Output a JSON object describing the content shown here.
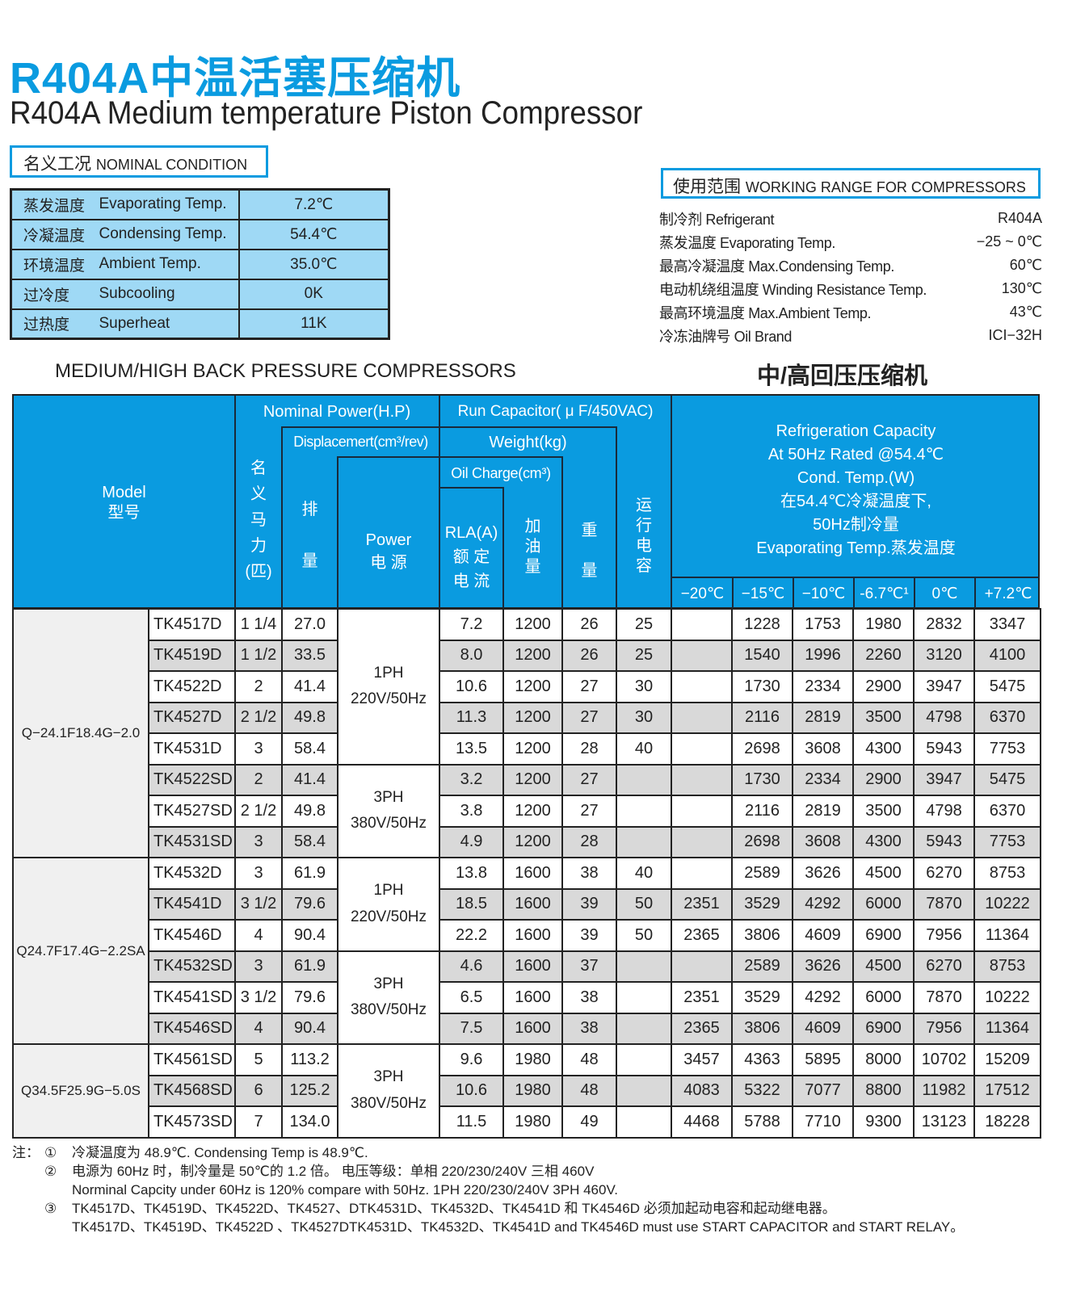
{
  "title_cn": "R404A中温活塞压缩机",
  "title_en": "R404A Medium temperature Piston Compressor",
  "nominal": {
    "header_cn": "名义工况",
    "header_en": "NOMINAL CONDITION",
    "rows": [
      {
        "cn": "蒸发温度",
        "en": "Evaporating Temp.",
        "value": "7.2℃"
      },
      {
        "cn": "冷凝温度",
        "en": "Condensing Temp.",
        "value": "54.4℃"
      },
      {
        "cn": "环境温度",
        "en": "Ambient Temp.",
        "value": "35.0℃"
      },
      {
        "cn": "过冷度",
        "en": "Subcooling",
        "value": "0K"
      },
      {
        "cn": "过热度",
        "en": "Superheat",
        "value": "11K"
      }
    ]
  },
  "working_range": {
    "header_cn": "使用范围",
    "header_en": "WORKING RANGE FOR COMPRESSORS",
    "rows": [
      {
        "label": "制冷剂 Refrigerant",
        "value": "R404A"
      },
      {
        "label": "蒸发温度 Evaporating Temp.",
        "value": "−25 ~ 0℃"
      },
      {
        "label": "最高冷凝温度 Max.Condensing Temp.",
        "value": "60℃"
      },
      {
        "label": "电动机绕组温度 Winding Resistance Temp.",
        "value": "130℃"
      },
      {
        "label": "最高环境温度 Max.Ambient Temp.",
        "value": "43℃"
      },
      {
        "label": "冷冻油牌号 Oil Brand",
        "value": "ICI−32H"
      }
    ]
  },
  "section_en": "MEDIUM/HIGH BACK PRESSURE COMPRESSORS",
  "section_cn": "中/高回压压缩机",
  "header": {
    "model": "Model\n型号",
    "nominal_power": "Nominal Power(H.P)",
    "hp_cn": "名\n义\n马\n力\n(匹)",
    "run_cap": "Run Capacitor( μ F/450VAC)",
    "displacement": "Displacemert(cm³/rev)",
    "disp_cn": "排\n\n量",
    "weight": "Weight(kg)",
    "oil_charge": "Oil Charge(cm³)",
    "power": "Power\n电 源",
    "rla": "RLA(A)\n额 定\n电 流",
    "oil_cn": "加\n油\n量",
    "weight_cn": "重\n\n量",
    "cap_cn": "运\n行\n电\n容",
    "refrig": "Refrigeration Capacity\nAt 50Hz Rated @54.4℃\nCond. Temp.(W)\n在54.4℃冷凝温度下,\n50Hz制冷量\nEvaporating Temp.蒸发温度",
    "temps": [
      "−20℃",
      "−15℃",
      "−10℃",
      "-6.7℃¹",
      "0℃",
      "+7.2℃"
    ]
  },
  "groups": [
    {
      "name": "Q−24.1F18.4G−2.0",
      "power_blocks": [
        {
          "label": "1PH\n220V/50Hz",
          "rows": 5
        },
        {
          "label": "3PH\n380V/50Hz",
          "rows": 3
        }
      ],
      "rows": [
        [
          "TK4517D",
          "1 1/4",
          "27.0",
          "7.2",
          "1200",
          "26",
          "25",
          "",
          "1228",
          "1753",
          "1980",
          "2832",
          "3347"
        ],
        [
          "TK4519D",
          "1 1/2",
          "33.5",
          "8.0",
          "1200",
          "26",
          "25",
          "",
          "1540",
          "1996",
          "2260",
          "3120",
          "4100"
        ],
        [
          "TK4522D",
          "2",
          "41.4",
          "10.6",
          "1200",
          "27",
          "30",
          "",
          "1730",
          "2334",
          "2900",
          "3947",
          "5475"
        ],
        [
          "TK4527D",
          "2 1/2",
          "49.8",
          "11.3",
          "1200",
          "27",
          "30",
          "",
          "2116",
          "2819",
          "3500",
          "4798",
          "6370"
        ],
        [
          "TK4531D",
          "3",
          "58.4",
          "13.5",
          "1200",
          "28",
          "40",
          "",
          "2698",
          "3608",
          "4300",
          "5943",
          "7753"
        ],
        [
          "TK4522SD",
          "2",
          "41.4",
          "3.2",
          "1200",
          "27",
          "",
          "",
          "1730",
          "2334",
          "2900",
          "3947",
          "5475"
        ],
        [
          "TK4527SD",
          "2 1/2",
          "49.8",
          "3.8",
          "1200",
          "27",
          "",
          "",
          "2116",
          "2819",
          "3500",
          "4798",
          "6370"
        ],
        [
          "TK4531SD",
          "3",
          "58.4",
          "4.9",
          "1200",
          "28",
          "",
          "",
          "2698",
          "3608",
          "4300",
          "5943",
          "7753"
        ]
      ]
    },
    {
      "name": "Q24.7F17.4G−2.2SA",
      "power_blocks": [
        {
          "label": "1PH\n220V/50Hz",
          "rows": 3
        },
        {
          "label": "3PH\n380V/50Hz",
          "rows": 3
        }
      ],
      "rows": [
        [
          "TK4532D",
          "3",
          "61.9",
          "13.8",
          "1600",
          "38",
          "40",
          "",
          "2589",
          "3626",
          "4500",
          "6270",
          "8753"
        ],
        [
          "TK4541D",
          "3 1/2",
          "79.6",
          "18.5",
          "1600",
          "39",
          "50",
          "2351",
          "3529",
          "4292",
          "6000",
          "7870",
          "10222"
        ],
        [
          "TK4546D",
          "4",
          "90.4",
          "22.2",
          "1600",
          "39",
          "50",
          "2365",
          "3806",
          "4609",
          "6900",
          "7956",
          "11364"
        ],
        [
          "TK4532SD",
          "3",
          "61.9",
          "4.6",
          "1600",
          "37",
          "",
          "",
          "2589",
          "3626",
          "4500",
          "6270",
          "8753"
        ],
        [
          "TK4541SD",
          "3 1/2",
          "79.6",
          "6.5",
          "1600",
          "38",
          "",
          "2351",
          "3529",
          "4292",
          "6000",
          "7870",
          "10222"
        ],
        [
          "TK4546SD",
          "4",
          "90.4",
          "7.5",
          "1600",
          "38",
          "",
          "2365",
          "3806",
          "4609",
          "6900",
          "7956",
          "11364"
        ]
      ]
    },
    {
      "name": "Q34.5F25.9G−5.0S",
      "power_blocks": [
        {
          "label": "3PH\n380V/50Hz",
          "rows": 3
        }
      ],
      "rows": [
        [
          "TK4561SD",
          "5",
          "113.2",
          "9.6",
          "1980",
          "48",
          "",
          "3457",
          "4363",
          "5895",
          "8000",
          "10702",
          "15209"
        ],
        [
          "TK4568SD",
          "6",
          "125.2",
          "10.6",
          "1980",
          "48",
          "",
          "4083",
          "5322",
          "7077",
          "8800",
          "11982",
          "17512"
        ],
        [
          "TK4573SD",
          "7",
          "134.0",
          "11.5",
          "1980",
          "49",
          "",
          "4468",
          "5788",
          "7710",
          "9300",
          "13123",
          "18228"
        ]
      ]
    }
  ],
  "notes": {
    "prefix": "注：",
    "items": [
      {
        "num": "①",
        "lines": [
          "冷凝温度为 48.9℃.   Condensing Temp is 48.9℃."
        ]
      },
      {
        "num": "②",
        "lines": [
          "电源为 60Hz 时，制冷量是 50℃的 1.2 倍。   电压等级：单相   220/230/240V   三相   460V",
          "Norminal Capcity under 60Hz is 120% compare with 50Hz.   1PH   220/230/240V   3PH   460V."
        ]
      },
      {
        "num": "③",
        "lines": [
          "TK4517D、TK4519D、TK4522D、TK4527、DTK4531D、TK4532D、TK4541D 和 TK4546D 必须加起动电容和起动继电器。",
          "TK4517D、TK4519D、TK4522D 、TK4527DTK4531D、TK4532D、TK4541D and TK4546D must use START CAPACITOR and START RELAY。"
        ]
      }
    ]
  },
  "colors": {
    "brand_blue": "#0a9be0",
    "nominal_bg": "#9fd9f5",
    "row_alt": "#d9d9d9"
  }
}
